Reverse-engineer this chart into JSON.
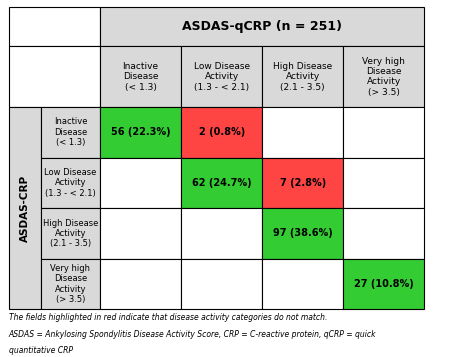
{
  "title": "ASDAS-qCRP (n = 251)",
  "col_headers": [
    "Inactive\nDisease\n(< 1.3)",
    "Low Disease\nActivity\n(1.3 - < 2.1)",
    "High Disease\nActivity\n(2.1 - 3.5)",
    "Very high\nDisease\nActivity\n(> 3.5)"
  ],
  "row_headers": [
    "Inactive\nDisease\n(< 1.3)",
    "Low Disease\nActivity\n(1.3 - < 2.1)",
    "High Disease\nActivity\n(2.1 - 3.5)",
    "Very high\nDisease\nActivity\n(> 3.5)"
  ],
  "y_axis_label": "ASDAS-CRP",
  "cell_values": [
    [
      "56 (22.3%)",
      "2 (0.8%)",
      "",
      ""
    ],
    [
      "",
      "62 (24.7%)",
      "7 (2.8%)",
      ""
    ],
    [
      "",
      "",
      "97 (38.6%)",
      ""
    ],
    [
      "",
      "",
      "",
      "27 (10.8%)"
    ]
  ],
  "cell_colors": [
    [
      "#33cc33",
      "#ff4444",
      "#ffffff",
      "#ffffff"
    ],
    [
      "#ffffff",
      "#33cc33",
      "#ff4444",
      "#ffffff"
    ],
    [
      "#ffffff",
      "#ffffff",
      "#33cc33",
      "#ffffff"
    ],
    [
      "#ffffff",
      "#ffffff",
      "#ffffff",
      "#33cc33"
    ]
  ],
  "header_bg": "#d9d9d9",
  "row_header_bg": "#d9d9d9",
  "top_left_bg": "#ffffff",
  "footnote1": "The fields highlighted in red indicate that disease activity categories do not match.",
  "footnote2": "ASDAS = Ankylosing Spondylitis Disease Activity Score, CRP = C-reactive protein, qCRP = quick",
  "footnote3": "quantitative CRP",
  "border_color": "#000000",
  "text_color": "#000000",
  "green_color": "#33cc33",
  "red_color": "#ff4444"
}
